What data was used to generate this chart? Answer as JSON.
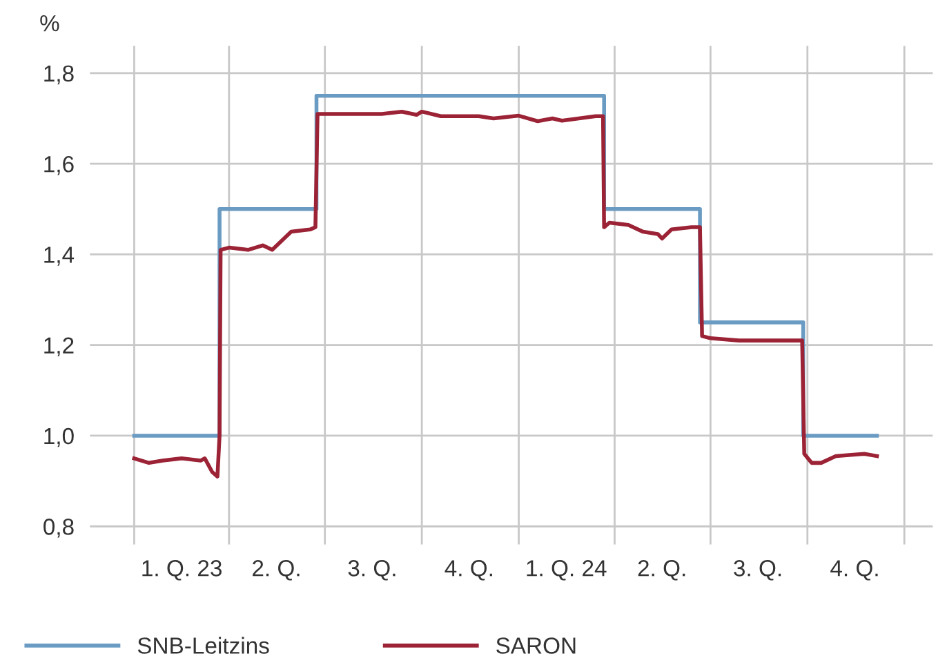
{
  "chart_data": {
    "type": "line",
    "ylabel": "%",
    "xlim": [
      "2022-11-20",
      "2025-01-28"
    ],
    "ylim": [
      0.76,
      1.86
    ],
    "xticks": [
      {
        "value": "2023-01-01",
        "label": null
      },
      {
        "value": "2023-02-15",
        "label": "1. Q. 23"
      },
      {
        "value": "2023-04-01",
        "label": null
      },
      {
        "value": "2023-05-16",
        "label": "2. Q."
      },
      {
        "value": "2023-07-01",
        "label": null
      },
      {
        "value": "2023-08-15",
        "label": "3. Q."
      },
      {
        "value": "2023-10-01",
        "label": null
      },
      {
        "value": "2023-11-15",
        "label": "4. Q."
      },
      {
        "value": "2024-01-01",
        "label": null
      },
      {
        "value": "2024-02-15",
        "label": "1. Q. 24"
      },
      {
        "value": "2024-04-01",
        "label": null
      },
      {
        "value": "2024-05-16",
        "label": "2. Q."
      },
      {
        "value": "2024-07-01",
        "label": null
      },
      {
        "value": "2024-08-15",
        "label": "3. Q."
      },
      {
        "value": "2024-10-01",
        "label": null
      },
      {
        "value": "2024-11-15",
        "label": "4. Q."
      },
      {
        "value": "2025-01-01",
        "label": null
      }
    ],
    "yticks": [
      {
        "value": 0.8,
        "label": "0,8"
      },
      {
        "value": 1.0,
        "label": "1,0"
      },
      {
        "value": 1.2,
        "label": "1,2"
      },
      {
        "value": 1.4,
        "label": "1,4"
      },
      {
        "value": 1.6,
        "label": "1,6"
      },
      {
        "value": 1.8,
        "label": "1,8"
      }
    ],
    "grid": true,
    "legend": "bottom",
    "line_style": "solid",
    "marker": "none",
    "series": [
      {
        "name": "SNB-Leitzins",
        "type": "step",
        "color": "#6a9bc3",
        "x": [
          "2023-01-01",
          "2023-03-23",
          "2023-06-23",
          "2024-03-22",
          "2024-06-21",
          "2024-09-27",
          "2024-12-06"
        ],
        "values": [
          1.0,
          1.5,
          1.75,
          1.5,
          1.25,
          1.0,
          1.0
        ]
      },
      {
        "name": "SARON",
        "type": "line",
        "color": "#9b2335",
        "x": [
          "2023-01-01",
          "2023-01-15",
          "2023-01-28",
          "2023-02-15",
          "2023-03-05",
          "2023-03-09",
          "2023-03-16",
          "2023-03-21",
          "2023-03-23",
          "2023-03-24",
          "2023-04-01",
          "2023-04-19",
          "2023-05-03",
          "2023-05-12",
          "2023-05-30",
          "2023-06-17",
          "2023-06-22",
          "2023-06-24",
          "2023-07-19",
          "2023-08-24",
          "2023-09-12",
          "2023-09-26",
          "2023-10-01",
          "2023-10-19",
          "2023-11-24",
          "2023-12-08",
          "2024-01-01",
          "2024-01-19",
          "2024-02-02",
          "2024-02-11",
          "2024-03-14",
          "2024-03-21",
          "2024-03-22",
          "2024-03-27",
          "2024-04-14",
          "2024-04-28",
          "2024-05-12",
          "2024-05-16",
          "2024-05-25",
          "2024-06-13",
          "2024-06-21",
          "2024-06-23",
          "2024-07-01",
          "2024-07-28",
          "2024-08-24",
          "2024-09-26",
          "2024-09-28",
          "2024-10-05",
          "2024-10-14",
          "2024-10-28",
          "2024-11-24",
          "2024-12-06"
        ],
        "values": [
          0.95,
          0.94,
          0.945,
          0.95,
          0.945,
          0.95,
          0.92,
          0.91,
          1.0,
          1.41,
          1.415,
          1.41,
          1.42,
          1.41,
          1.45,
          1.455,
          1.46,
          1.71,
          1.71,
          1.71,
          1.715,
          1.708,
          1.715,
          1.705,
          1.705,
          1.7,
          1.706,
          1.694,
          1.7,
          1.695,
          1.705,
          1.705,
          1.46,
          1.47,
          1.465,
          1.45,
          1.445,
          1.435,
          1.455,
          1.46,
          1.46,
          1.22,
          1.215,
          1.21,
          1.21,
          1.21,
          0.96,
          0.94,
          0.94,
          0.955,
          0.96,
          0.955
        ]
      }
    ]
  }
}
